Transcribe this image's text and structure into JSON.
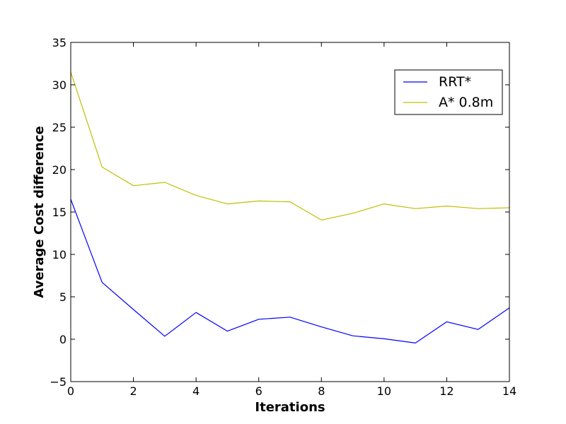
{
  "chart_data": {
    "type": "line",
    "title": "",
    "xlabel": "Iterations",
    "ylabel": "Average Cost difference",
    "xlim": [
      0,
      14
    ],
    "ylim": [
      -5,
      35
    ],
    "xticks": [
      "0",
      "2",
      "4",
      "6",
      "8",
      "10",
      "12",
      "14"
    ],
    "yticks": [
      "−5",
      "0",
      "5",
      "10",
      "15",
      "20",
      "25",
      "30",
      "35"
    ],
    "grid": false,
    "legend_position": "top-right",
    "x": [
      0,
      1,
      2,
      3,
      4,
      5,
      6,
      7,
      8,
      9,
      10,
      11,
      12,
      13,
      14
    ],
    "series": [
      {
        "name": "RRT*",
        "color": "#0000ff",
        "values": [
          16.5,
          6.7,
          3.5,
          0.35,
          3.15,
          0.95,
          2.35,
          2.6,
          1.45,
          0.4,
          0.05,
          -0.45,
          2.05,
          1.15,
          3.7
        ]
      },
      {
        "name": "A* 0.8m",
        "color": "#bfbf00",
        "values": [
          31.5,
          20.3,
          18.1,
          18.5,
          16.95,
          15.95,
          16.3,
          16.2,
          14.05,
          14.85,
          15.95,
          15.4,
          15.7,
          15.4,
          15.5
        ]
      }
    ]
  }
}
